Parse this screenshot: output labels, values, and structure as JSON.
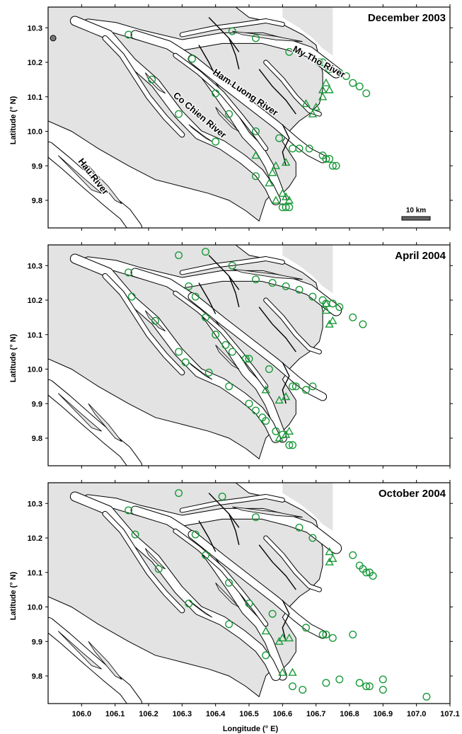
{
  "chart_data": {
    "type": "scatter",
    "xlabel": "Longitude (° E)",
    "ylabel": "Latitude (° N)",
    "xlim": [
      105.9,
      107.1
    ],
    "ylim": [
      9.72,
      10.36
    ],
    "x_ticks": [
      "106.0",
      "106.1",
      "106.2",
      "106.3",
      "106.4",
      "106.5",
      "106.6",
      "106.7",
      "106.8",
      "106.9",
      "107.0",
      "107.1"
    ],
    "y_ticks": [
      "10.3",
      "10.2",
      "10.1",
      "10.0",
      "9.9",
      "9.8"
    ],
    "colors": {
      "marker": "#1a9a3a",
      "land": "#e3e3e3",
      "river": "#ffffff",
      "outline": "#000000",
      "frame": "#000000"
    },
    "legend": "none",
    "river_labels": [
      "My Tho River",
      "Ham Luong River",
      "Co Chien River",
      "Hau River"
    ],
    "scale_bar": "10 km",
    "reference_point": {
      "x": 105.915,
      "y": 10.27
    },
    "panels": [
      {
        "title": "December 2003",
        "series": [
          {
            "marker": "circle",
            "points": [
              [
                106.14,
                10.28
              ],
              [
                106.21,
                10.15
              ],
              [
                106.29,
                10.05
              ],
              [
                106.33,
                10.21
              ],
              [
                106.4,
                10.11
              ],
              [
                106.4,
                9.97
              ],
              [
                106.44,
                10.05
              ],
              [
                106.45,
                10.29
              ],
              [
                106.52,
                10.0
              ],
              [
                106.52,
                10.27
              ],
              [
                106.52,
                9.87
              ],
              [
                106.59,
                9.98
              ],
              [
                106.62,
                10.23
              ],
              [
                106.63,
                9.95
              ],
              [
                106.65,
                9.95
              ],
              [
                106.68,
                9.95
              ],
              [
                106.71,
                10.2
              ],
              [
                106.72,
                10.2
              ],
              [
                106.72,
                9.93
              ],
              [
                106.73,
                9.92
              ],
              [
                106.74,
                9.92
              ],
              [
                106.74,
                10.18
              ],
              [
                106.75,
                9.9
              ],
              [
                106.76,
                9.9
              ],
              [
                106.77,
                10.17
              ],
              [
                106.79,
                10.16
              ],
              [
                106.81,
                10.14
              ],
              [
                106.83,
                10.13
              ],
              [
                106.85,
                10.11
              ],
              [
                106.6,
                9.78
              ],
              [
                106.61,
                9.78
              ],
              [
                106.62,
                9.78
              ]
            ]
          },
          {
            "marker": "triangle",
            "points": [
              [
                106.52,
                9.93
              ],
              [
                106.56,
                9.85
              ],
              [
                106.57,
                9.88
              ],
              [
                106.58,
                9.9
              ],
              [
                106.61,
                9.91
              ],
              [
                106.61,
                9.81
              ],
              [
                106.62,
                9.8
              ],
              [
                106.58,
                9.8
              ],
              [
                106.6,
                9.82
              ],
              [
                106.67,
                10.08
              ],
              [
                106.69,
                10.05
              ],
              [
                106.7,
                10.07
              ],
              [
                106.72,
                10.1
              ],
              [
                106.72,
                10.12
              ],
              [
                106.73,
                10.14
              ],
              [
                106.74,
                10.12
              ]
            ]
          }
        ]
      },
      {
        "title": "April 2004",
        "series": [
          {
            "marker": "circle",
            "points": [
              [
                106.14,
                10.28
              ],
              [
                106.15,
                10.21
              ],
              [
                106.22,
                10.14
              ],
              [
                106.29,
                10.33
              ],
              [
                106.29,
                10.05
              ],
              [
                106.31,
                10.02
              ],
              [
                106.32,
                10.24
              ],
              [
                106.34,
                10.21
              ],
              [
                106.37,
                10.34
              ],
              [
                106.37,
                10.15
              ],
              [
                106.38,
                9.99
              ],
              [
                106.4,
                10.1
              ],
              [
                106.43,
                10.07
              ],
              [
                106.44,
                9.95
              ],
              [
                106.45,
                10.3
              ],
              [
                106.45,
                10.05
              ],
              [
                106.49,
                10.03
              ],
              [
                106.5,
                9.9
              ],
              [
                106.5,
                10.03
              ],
              [
                106.52,
                9.88
              ],
              [
                106.52,
                10.26
              ],
              [
                106.54,
                9.86
              ],
              [
                106.55,
                9.85
              ],
              [
                106.56,
                10.0
              ],
              [
                106.57,
                10.25
              ],
              [
                106.58,
                9.82
              ],
              [
                106.6,
                9.81
              ],
              [
                106.61,
                10.24
              ],
              [
                106.62,
                9.78
              ],
              [
                106.63,
                9.78
              ],
              [
                106.63,
                9.95
              ],
              [
                106.64,
                9.95
              ],
              [
                106.65,
                10.23
              ],
              [
                106.67,
                9.94
              ],
              [
                106.69,
                9.95
              ],
              [
                106.69,
                10.21
              ],
              [
                106.72,
                10.2
              ],
              [
                106.73,
                10.19
              ],
              [
                106.75,
                10.19
              ],
              [
                106.77,
                10.18
              ],
              [
                106.81,
                10.15
              ],
              [
                106.84,
                10.13
              ]
            ]
          },
          {
            "marker": "triangle",
            "points": [
              [
                106.55,
                9.94
              ],
              [
                106.59,
                9.91
              ],
              [
                106.61,
                9.92
              ],
              [
                106.61,
                9.81
              ],
              [
                106.62,
                9.82
              ],
              [
                106.59,
                9.8
              ],
              [
                106.74,
                10.13
              ],
              [
                106.75,
                10.14
              ],
              [
                106.73,
                10.17
              ],
              [
                106.73,
                10.19
              ]
            ]
          }
        ]
      },
      {
        "title": "October 2004",
        "series": [
          {
            "marker": "circle",
            "points": [
              [
                106.14,
                10.28
              ],
              [
                106.16,
                10.21
              ],
              [
                106.23,
                10.11
              ],
              [
                106.29,
                10.33
              ],
              [
                106.32,
                10.01
              ],
              [
                106.34,
                10.21
              ],
              [
                106.37,
                10.15
              ],
              [
                106.42,
                10.32
              ],
              [
                106.44,
                9.95
              ],
              [
                106.44,
                10.07
              ],
              [
                106.5,
                10.01
              ],
              [
                106.52,
                10.26
              ],
              [
                106.55,
                9.86
              ],
              [
                106.57,
                9.98
              ],
              [
                106.63,
                9.77
              ],
              [
                106.65,
                10.23
              ],
              [
                106.66,
                9.76
              ],
              [
                106.67,
                9.94
              ],
              [
                106.69,
                10.2
              ],
              [
                106.72,
                9.92
              ],
              [
                106.73,
                9.92
              ],
              [
                106.73,
                9.78
              ],
              [
                106.75,
                9.91
              ],
              [
                106.77,
                9.79
              ],
              [
                106.81,
                9.92
              ],
              [
                106.81,
                10.15
              ],
              [
                106.83,
                10.12
              ],
              [
                106.84,
                10.11
              ],
              [
                106.85,
                10.1
              ],
              [
                106.86,
                10.1
              ],
              [
                106.87,
                10.09
              ],
              [
                106.83,
                9.78
              ],
              [
                106.85,
                9.77
              ],
              [
                106.86,
                9.77
              ],
              [
                106.9,
                9.79
              ],
              [
                106.9,
                9.76
              ],
              [
                107.03,
                9.74
              ]
            ]
          },
          {
            "marker": "triangle",
            "points": [
              [
                106.55,
                9.93
              ],
              [
                106.59,
                9.9
              ],
              [
                106.6,
                9.91
              ],
              [
                106.62,
                9.91
              ],
              [
                106.6,
                9.81
              ],
              [
                106.63,
                9.81
              ],
              [
                106.74,
                10.13
              ],
              [
                106.74,
                10.16
              ],
              [
                106.75,
                10.14
              ]
            ]
          }
        ]
      }
    ]
  }
}
